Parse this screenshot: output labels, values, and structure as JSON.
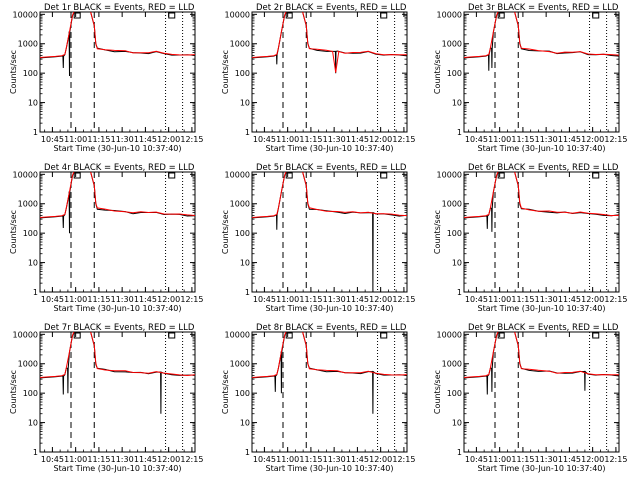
{
  "chart_data": [
    {
      "type": "line",
      "title": "Det 1r BLACK = Events, RED = LLD",
      "xlabel": "Start Time (30-Jun-10 10:37:40)",
      "ylabel": "Counts/sec",
      "x_ticks": [
        "10:45",
        "11:00",
        "11:15",
        "11:30",
        "11:45",
        "12:00",
        "12:15"
      ],
      "y_ticks": [
        "1",
        "10",
        "100",
        "1000",
        "10000"
      ],
      "y_scale": "log",
      "ylim": [
        1,
        12000
      ],
      "dashed_lines": [
        "10:57",
        "11:12"
      ],
      "dotted_lines": [
        "11:58",
        "12:09"
      ],
      "box_markers": [
        "11:01",
        "12:02"
      ],
      "dips": [
        {
          "x": "10:52",
          "y": 150
        },
        {
          "x": "10:56",
          "y": 80
        }
      ],
      "series": [
        {
          "name": "Events",
          "color": "#000000"
        },
        {
          "name": "LLD",
          "color": "#ff0000"
        }
      ]
    },
    {
      "type": "line",
      "title": "Det 2r BLACK = Events, RED = LLD",
      "xlabel": "Start Time (30-Jun-10 10:37:40)",
      "ylabel": "Counts/sec",
      "x_ticks": [
        "10:45",
        "11:00",
        "11:15",
        "11:30",
        "11:45",
        "12:00",
        "12:15"
      ],
      "y_ticks": [
        "1",
        "10",
        "100",
        "1000",
        "10000"
      ],
      "y_scale": "log",
      "ylim": [
        1,
        12000
      ],
      "dashed_lines": [
        "10:57",
        "11:12"
      ],
      "dotted_lines": [
        "11:58",
        "12:09"
      ],
      "box_markers": [
        "11:01",
        "12:02"
      ],
      "dips": [
        {
          "x": "10:53",
          "y": 200
        },
        {
          "x": "11:31",
          "y": 100
        }
      ],
      "series": [
        {
          "name": "Events",
          "color": "#000000"
        },
        {
          "name": "LLD",
          "color": "#ff0000"
        }
      ]
    },
    {
      "type": "line",
      "title": "Det 3r BLACK = Events, RED = LLD",
      "xlabel": "Start Time (30-Jun-10 10:37:40)",
      "ylabel": "Counts/sec",
      "x_ticks": [
        "10:45",
        "11:00",
        "11:15",
        "11:30",
        "11:45",
        "12:00",
        "12:15"
      ],
      "y_ticks": [
        "1",
        "10",
        "100",
        "1000",
        "10000"
      ],
      "y_scale": "log",
      "ylim": [
        1,
        12000
      ],
      "dashed_lines": [
        "10:57",
        "11:12"
      ],
      "dotted_lines": [
        "11:58",
        "12:09"
      ],
      "box_markers": [
        "11:01",
        "12:02"
      ],
      "dips": [
        {
          "x": "10:53",
          "y": 120
        },
        {
          "x": "10:55",
          "y": 150
        }
      ],
      "series": [
        {
          "name": "Events",
          "color": "#000000"
        },
        {
          "name": "LLD",
          "color": "#ff0000"
        }
      ]
    },
    {
      "type": "line",
      "title": "Det 4r BLACK = Events, RED = LLD",
      "xlabel": "Start Time (30-Jun-10 10:37:40)",
      "ylabel": "Counts/sec",
      "x_ticks": [
        "10:45",
        "11:00",
        "11:15",
        "11:30",
        "11:45",
        "12:00",
        "12:15"
      ],
      "y_ticks": [
        "1",
        "10",
        "100",
        "1000",
        "10000"
      ],
      "y_scale": "log",
      "ylim": [
        1,
        12000
      ],
      "dashed_lines": [
        "10:57",
        "11:12"
      ],
      "dotted_lines": [
        "11:58",
        "12:09"
      ],
      "box_markers": [
        "11:01",
        "12:02"
      ],
      "dips": [
        {
          "x": "10:52",
          "y": 150
        },
        {
          "x": "10:56",
          "y": 100
        }
      ],
      "series": [
        {
          "name": "Events",
          "color": "#000000"
        },
        {
          "name": "LLD",
          "color": "#ff0000"
        }
      ]
    },
    {
      "type": "line",
      "title": "Det 5r BLACK = Events, RED = LLD",
      "xlabel": "Start Time (30-Jun-10 10:37:40)",
      "ylabel": "Counts/sec",
      "x_ticks": [
        "10:45",
        "11:00",
        "11:15",
        "11:30",
        "11:45",
        "12:00",
        "12:15"
      ],
      "y_ticks": [
        "1",
        "10",
        "100",
        "1000",
        "10000"
      ],
      "y_scale": "log",
      "ylim": [
        1,
        12000
      ],
      "dashed_lines": [
        "10:57",
        "11:12"
      ],
      "dotted_lines": [
        "11:58",
        "12:09"
      ],
      "box_markers": [
        "11:01",
        "12:02"
      ],
      "dips": [
        {
          "x": "10:53",
          "y": 130
        },
        {
          "x": "11:55",
          "y": 1
        }
      ],
      "series": [
        {
          "name": "Events",
          "color": "#000000"
        },
        {
          "name": "LLD",
          "color": "#ff0000"
        }
      ]
    },
    {
      "type": "line",
      "title": "Det 6r BLACK = Events, RED = LLD",
      "xlabel": "Start Time (30-Jun-10 10:37:40)",
      "ylabel": "Counts/sec",
      "x_ticks": [
        "10:45",
        "11:00",
        "11:15",
        "11:30",
        "11:45",
        "12:00",
        "12:15"
      ],
      "y_ticks": [
        "1",
        "10",
        "100",
        "1000",
        "10000"
      ],
      "y_scale": "log",
      "ylim": [
        1,
        12000
      ],
      "dashed_lines": [
        "10:57",
        "11:12"
      ],
      "dotted_lines": [
        "11:58",
        "12:09"
      ],
      "box_markers": [
        "11:01",
        "12:02"
      ],
      "dips": [
        {
          "x": "10:52",
          "y": 140
        },
        {
          "x": "10:55",
          "y": 110
        }
      ],
      "series": [
        {
          "name": "Events",
          "color": "#000000"
        },
        {
          "name": "LLD",
          "color": "#ff0000"
        }
      ]
    },
    {
      "type": "line",
      "title": "Det 7r BLACK = Events, RED = LLD",
      "xlabel": "Start Time (30-Jun-10 10:37:40)",
      "ylabel": "Counts/sec",
      "x_ticks": [
        "10:45",
        "11:00",
        "11:15",
        "11:30",
        "11:45",
        "12:00",
        "12:15"
      ],
      "y_ticks": [
        "1",
        "10",
        "100",
        "1000",
        "10000"
      ],
      "y_scale": "log",
      "ylim": [
        1,
        12000
      ],
      "dashed_lines": [
        "10:57",
        "11:12"
      ],
      "dotted_lines": [
        "11:58",
        "12:09"
      ],
      "box_markers": [
        "11:01",
        "12:02"
      ],
      "dips": [
        {
          "x": "10:52",
          "y": 90
        },
        {
          "x": "10:55",
          "y": 100
        },
        {
          "x": "11:55",
          "y": 20
        }
      ],
      "series": [
        {
          "name": "Events",
          "color": "#000000"
        },
        {
          "name": "LLD",
          "color": "#ff0000"
        }
      ]
    },
    {
      "type": "line",
      "title": "Det 8r BLACK = Events, RED = LLD",
      "xlabel": "Start Time (30-Jun-10 10:37:40)",
      "ylabel": "Counts/sec",
      "x_ticks": [
        "10:45",
        "11:00",
        "11:15",
        "11:30",
        "11:45",
        "12:00",
        "12:15"
      ],
      "y_ticks": [
        "1",
        "10",
        "100",
        "1000",
        "10000"
      ],
      "y_scale": "log",
      "ylim": [
        1,
        12000
      ],
      "dashed_lines": [
        "10:57",
        "11:12"
      ],
      "dotted_lines": [
        "11:58",
        "12:09"
      ],
      "box_markers": [
        "11:01",
        "12:02"
      ],
      "dips": [
        {
          "x": "10:52",
          "y": 110
        },
        {
          "x": "10:56",
          "y": 100
        },
        {
          "x": "11:55",
          "y": 20
        }
      ],
      "series": [
        {
          "name": "Events",
          "color": "#000000"
        },
        {
          "name": "LLD",
          "color": "#ff0000"
        }
      ]
    },
    {
      "type": "line",
      "title": "Det 9r BLACK = Events, RED = LLD",
      "xlabel": "Start Time (30-Jun-10 10:37:40)",
      "ylabel": "Counts/sec",
      "x_ticks": [
        "10:45",
        "11:00",
        "11:15",
        "11:30",
        "11:45",
        "12:00",
        "12:15"
      ],
      "y_ticks": [
        "1",
        "10",
        "100",
        "1000",
        "10000"
      ],
      "y_scale": "log",
      "ylim": [
        1,
        12000
      ],
      "dashed_lines": [
        "10:57",
        "11:12"
      ],
      "dotted_lines": [
        "11:58",
        "12:09"
      ],
      "box_markers": [
        "11:01",
        "12:02"
      ],
      "dips": [
        {
          "x": "10:52",
          "y": 90
        },
        {
          "x": "10:55",
          "y": 110
        },
        {
          "x": "11:55",
          "y": 120
        }
      ],
      "series": [
        {
          "name": "Events",
          "color": "#000000"
        },
        {
          "name": "LLD",
          "color": "#ff0000"
        }
      ]
    }
  ]
}
